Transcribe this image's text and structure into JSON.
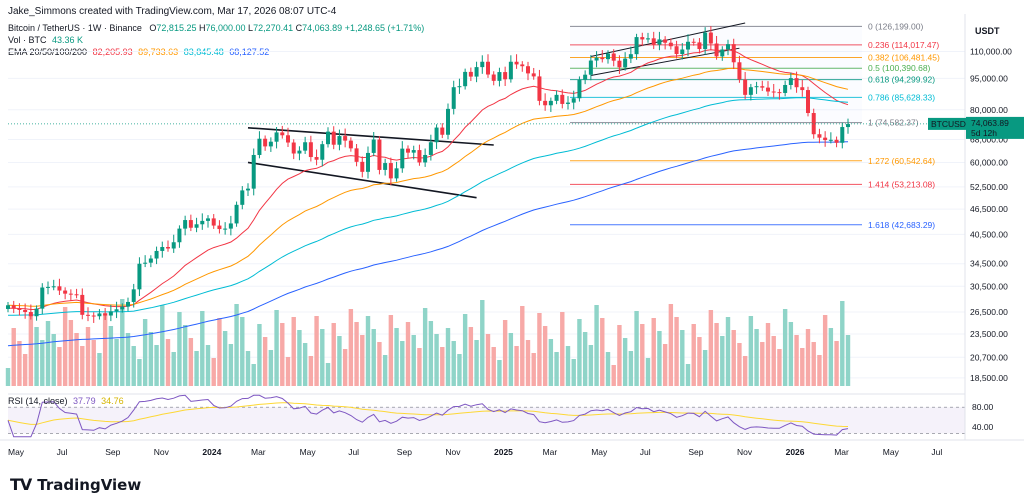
{
  "header": {
    "credit": "Jake_Simmons created with TradingView.com, Mar 17, 2026 08:07 UTC-4"
  },
  "legend": {
    "title": "Bitcoin / TetherUS · 1W · Binance",
    "ohlc": {
      "o_label": "O",
      "o": "72,815.25",
      "h_label": "H",
      "h": "76,000.00",
      "l_label": "L",
      "l": "72,270.41",
      "c_label": "C",
      "c": "74,063.89",
      "change": "+1,248.65 (+1.71%)"
    },
    "vol_label": "Vol · BTC",
    "vol_value": "43.36 K",
    "ema_label": "EMA 20/50/100/200",
    "ema_values": [
      {
        "value": "82,205.93",
        "color": "#f23645"
      },
      {
        "value": "89,733.63",
        "color": "#ff9800"
      },
      {
        "value": "83,845.48",
        "color": "#00bcd4"
      },
      {
        "value": "68,127.52",
        "color": "#2962ff"
      }
    ]
  },
  "price_axis": {
    "currency": "USDT",
    "ticks": [
      "110,000.00",
      "95,000.00",
      "80,000.00",
      "68,000.00",
      "60,000.00",
      "52,500.00",
      "46,500.00",
      "40,500.00",
      "34,500.00",
      "30,500.00",
      "26,500.00",
      "23,500.00",
      "20,700.00",
      "18,500.00"
    ],
    "current_symbol": "BTCUSDT",
    "current_price": "74,063.89",
    "countdown": "5d 12h"
  },
  "fib_levels": [
    {
      "ratio": "0",
      "price": "(126,199.00)",
      "color": "#787b86"
    },
    {
      "ratio": "0.236",
      "price": "(114,017.47)",
      "color": "#f23645"
    },
    {
      "ratio": "0.382",
      "price": "(106,481.45)",
      "color": "#ff9800"
    },
    {
      "ratio": "0.5",
      "price": "(100,390.68)",
      "color": "#4caf50"
    },
    {
      "ratio": "0.618",
      "price": "(94,299.92)",
      "color": "#089981"
    },
    {
      "ratio": "0.786",
      "price": "(85,628.33)",
      "color": "#00bcd4"
    },
    {
      "ratio": "1",
      "price": "(74,582.37)",
      "color": "#787b86"
    },
    {
      "ratio": "1.272",
      "price": "(60,542.64)",
      "color": "#ff9800"
    },
    {
      "ratio": "1.414",
      "price": "(53,213.08)",
      "color": "#f23645"
    },
    {
      "ratio": "1.618",
      "price": "(42,683.29)",
      "color": "#2962ff"
    }
  ],
  "time_axis": [
    "May",
    "Jul",
    "Sep",
    "Nov",
    "2024",
    "Mar",
    "May",
    "Jul",
    "Sep",
    "Nov",
    "2025",
    "Mar",
    "May",
    "Jul",
    "Sep",
    "Nov",
    "2026",
    "Mar",
    "May",
    "Jul"
  ],
  "rsi": {
    "label": "RSI (14, close)",
    "value": "37.79",
    "ma_value": "34.76",
    "ticks": [
      "80.00",
      "40.00"
    ],
    "line_color": "#7e57c2",
    "ma_color": "#fdd835"
  },
  "footer": {
    "brand": "TradingView"
  },
  "colors": {
    "up": "#089981",
    "down": "#f23645",
    "vol_up": "#8fd4c8",
    "vol_down": "#f7a9a7"
  },
  "chart_data": {
    "type": "candlestick",
    "title": "Bitcoin / TetherUS · 1W · Binance",
    "y_scale": "log",
    "ylim": [
      17500,
      135000
    ],
    "x_range": [
      "2023-05",
      "2026-07"
    ],
    "close_series_approx": [
      27500,
      27000,
      26800,
      26500,
      25900,
      27000,
      30300,
      30400,
      30500,
      29800,
      29300,
      29200,
      29100,
      26100,
      26000,
      25900,
      26300,
      26000,
      26600,
      26900,
      27300,
      28000,
      30000,
      34500,
      34700,
      35500,
      37000,
      37800,
      37500,
      38800,
      41800,
      43800,
      42000,
      42800,
      43600,
      44200,
      42500,
      41700,
      41800,
      43000,
      47600,
      51500,
      52000,
      62500,
      68300,
      65500,
      67200,
      70700,
      69600,
      66900,
      63000,
      64000,
      67000,
      61800,
      60900,
      66300,
      71000,
      66100,
      69300,
      67600,
      64800,
      60200,
      57000,
      63200,
      68000,
      57600,
      59800,
      55000,
      58100,
      64700,
      63300,
      64200,
      60000,
      62500,
      67000,
      72600,
      69800,
      80400,
      90500,
      91000,
      98400,
      95900,
      101000,
      104000,
      97000,
      93700,
      98300,
      94500,
      104000,
      102500,
      101500,
      97600,
      96000,
      84000,
      82000,
      84000,
      86800,
      82600,
      83200,
      85200,
      94300,
      96900,
      104700,
      106400,
      105500,
      108800,
      104600,
      100900,
      105800,
      108400,
      119000,
      117500,
      118200,
      114200,
      117500,
      115400,
      113200,
      108500,
      111200,
      116000,
      115600,
      111500,
      122000,
      114900,
      107100,
      111200,
      114500,
      103700,
      94400,
      86800,
      90500,
      91000,
      90300,
      88400,
      88100,
      87700,
      91600,
      95100,
      90500,
      89100,
      78600,
      70000,
      68700,
      67800,
      67900,
      66800,
      72800,
      74000
    ],
    "annotations": {
      "fib_retracement": [
        "0 (126,199.00)",
        "0.236 (114,017.47)",
        "0.382 (106,481.45)",
        "0.5 (100,390.68)",
        "0.618 (94,299.92)",
        "0.786 (85,628.33)",
        "1 (74,582.37)",
        "1.272 (60,542.64)",
        "1.414 (53,213.08)",
        "1.618 (42,683.29)"
      ]
    },
    "ema_last": {
      "ema20": 82205.93,
      "ema50": 89733.63,
      "ema100": 83845.48,
      "ema200": 68127.52
    },
    "rsi_last": 37.79,
    "rsi_ma_last": 34.76
  }
}
